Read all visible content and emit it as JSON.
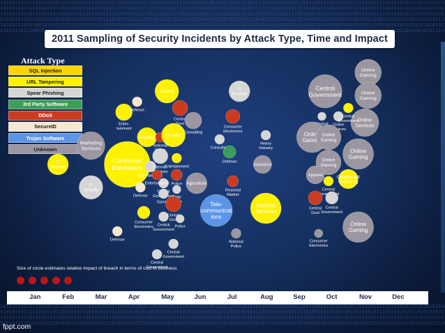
{
  "title": "2011 Sampling of Security Incidents by Attack Type, Time and Impact",
  "legend_title": "Attack Type",
  "note": "Size of circle estimates relative impact of breach in terms of cost to business",
  "brand": "fppt.com",
  "colors": {
    "sql_injection": "#ffd200",
    "url_tampering": "#fff200",
    "spear_phishing": "#d6d6d6",
    "third_party_software": "#3d9c5a",
    "ddos": "#cc3a1f",
    "secureid": "#f6e7d0",
    "trojan_software": "#5d95e6",
    "unknown": "#9b96a0"
  },
  "legend": [
    {
      "label": "SQL Injection",
      "color": "#ffd200",
      "text_color": "#1a1a1a"
    },
    {
      "label": "URL Tampering",
      "color": "#fff200",
      "text_color": "#1a1a1a"
    },
    {
      "label": "Spear Phishing",
      "color": "#d6d6d6",
      "text_color": "#1a1a1a"
    },
    {
      "label": "3rd Party Software",
      "color": "#3d9c5a",
      "text_color": "#ffffff"
    },
    {
      "label": "DDoS",
      "color": "#cc3a1f",
      "text_color": "#ffffff"
    },
    {
      "label": "SecureID",
      "color": "#f6e7d0",
      "text_color": "#1a1a1a"
    },
    {
      "label": "Trojan Software",
      "color": "#5d95e6",
      "text_color": "#ffffff"
    },
    {
      "label": "Unknown",
      "color": "#9b96a0",
      "text_color": "#1a1a1a"
    }
  ],
  "chart_data": {
    "type": "scatter",
    "title": "2011 Sampling of Security Incidents by Attack Type, Time and Impact",
    "x_categories": [
      "Jan",
      "Feb",
      "Mar",
      "Apr",
      "May",
      "Jun",
      "Jul",
      "Aug",
      "Sep",
      "Oct",
      "Nov",
      "Dec"
    ],
    "size_meaning": "Size of circle estimates relative impact of breach in terms of cost to business",
    "points": [
      {
        "label": "IT Security",
        "month": 1.7,
        "row": 0.47,
        "size": 15,
        "type": "url_tampering"
      },
      {
        "label": "Marketing Services",
        "month": 2.7,
        "row": 0.38,
        "size": 20,
        "type": "unknown"
      },
      {
        "label": "IT Security",
        "month": 2.7,
        "row": 0.58,
        "size": 17,
        "type": "spear_phishing"
      },
      {
        "label": "Consumer Electronics",
        "month": 3.8,
        "row": 0.47,
        "size": 33,
        "type": "url_tampering"
      },
      {
        "label": "Defense",
        "month": 3.5,
        "row": 0.79,
        "size": 7,
        "type": "secureid"
      },
      {
        "label": "Enter- tainment",
        "month": 3.7,
        "row": 0.22,
        "size": 12,
        "type": "url_tampering"
      },
      {
        "label": "Defense",
        "month": 4.1,
        "row": 0.17,
        "size": 7,
        "type": "secureid"
      },
      {
        "label": "Banking",
        "month": 4.4,
        "row": 0.34,
        "size": 14,
        "type": "url_tampering"
      },
      {
        "label": "Entertainment",
        "month": 4.5,
        "row": 0.48,
        "size": 8,
        "type": "spear_phishing"
      },
      {
        "label": "Defense",
        "month": 4.2,
        "row": 0.58,
        "size": 7,
        "type": "secureid"
      },
      {
        "label": "Consumer Electronics",
        "month": 4.3,
        "row": 0.7,
        "size": 9,
        "type": "url_tampering"
      },
      {
        "label": "Central Government",
        "month": 4.7,
        "row": 0.9,
        "size": 7,
        "type": "spear_phishing"
      },
      {
        "label": "National Police",
        "month": 4.8,
        "row": 0.34,
        "size": 7,
        "type": "ddos"
      },
      {
        "label": "Internet Services",
        "month": 4.8,
        "row": 0.43,
        "size": 11,
        "type": "spear_phishing"
      },
      {
        "label": "Central Government",
        "month": 4.9,
        "row": 0.56,
        "size": 7,
        "type": "spear_phishing"
      },
      {
        "label": "Gaming",
        "month": 4.9,
        "row": 0.61,
        "size": 7,
        "type": "spear_phishing"
      },
      {
        "label": "Central Government",
        "month": 4.9,
        "row": 0.72,
        "size": 7,
        "type": "spear_phishing"
      },
      {
        "label": "Entertainment",
        "month": 4.7,
        "row": 0.52,
        "size": 7,
        "type": "ddos"
      },
      {
        "label": "Gaming",
        "month": 5.0,
        "row": 0.12,
        "size": 17,
        "type": "url_tampering"
      },
      {
        "label": "Central Govt",
        "month": 5.4,
        "row": 0.2,
        "size": 11,
        "type": "ddos"
      },
      {
        "label": "Gaming",
        "month": 5.2,
        "row": 0.33,
        "size": 17,
        "type": "url_tampering"
      },
      {
        "label": "Entertainment",
        "month": 5.3,
        "row": 0.44,
        "size": 7,
        "type": "url_tampering"
      },
      {
        "label": "Police",
        "month": 5.3,
        "row": 0.52,
        "size": 8,
        "type": "ddos"
      },
      {
        "label": "State Police",
        "month": 5.3,
        "row": 0.59,
        "size": 6,
        "type": "spear_phishing"
      },
      {
        "label": "Central Govt",
        "month": 5.2,
        "row": 0.66,
        "size": 11,
        "type": "ddos"
      },
      {
        "label": "Police",
        "month": 5.4,
        "row": 0.73,
        "size": 6,
        "type": "spear_phishing"
      },
      {
        "label": "Central Government",
        "month": 5.2,
        "row": 0.85,
        "size": 7,
        "type": "spear_phishing"
      },
      {
        "label": "Consulting",
        "month": 5.8,
        "row": 0.26,
        "size": 12,
        "type": "unknown"
      },
      {
        "label": "Agriculture",
        "month": 5.9,
        "row": 0.56,
        "size": 15,
        "type": "unknown"
      },
      {
        "label": "Tele- communicat ions",
        "month": 6.5,
        "row": 0.69,
        "size": 23,
        "type": "trojan_software"
      },
      {
        "label": "IT Security",
        "month": 7.2,
        "row": 0.12,
        "size": 15,
        "type": "spear_phishing"
      },
      {
        "label": "Consumer Electronics",
        "month": 7.0,
        "row": 0.24,
        "size": 10,
        "type": "ddos"
      },
      {
        "label": "Consulting",
        "month": 6.6,
        "row": 0.35,
        "size": 7,
        "type": "spear_phishing"
      },
      {
        "label": "Defense",
        "month": 6.9,
        "row": 0.41,
        "size": 9,
        "type": "third_party_software"
      },
      {
        "label": "Financial Market",
        "month": 7.0,
        "row": 0.55,
        "size": 8,
        "type": "ddos"
      },
      {
        "label": "National Police",
        "month": 7.1,
        "row": 0.8,
        "size": 7,
        "type": "unknown"
      },
      {
        "label": "Heavy Industry",
        "month": 8.0,
        "row": 0.33,
        "size": 7,
        "type": "spear_phishing"
      },
      {
        "label": "Insurance",
        "month": 7.9,
        "row": 0.47,
        "size": 13,
        "type": "unknown"
      },
      {
        "label": "Internet Services",
        "month": 8.0,
        "row": 0.68,
        "size": 22,
        "type": "url_tampering"
      },
      {
        "label": "Central Government",
        "month": 9.8,
        "row": 0.12,
        "size": 24,
        "type": "unknown"
      },
      {
        "label": "Central Government",
        "month": 9.7,
        "row": 0.24,
        "size": 6,
        "type": "spear_phishing"
      },
      {
        "label": "Online Services",
        "month": 10.2,
        "row": 0.24,
        "size": 7,
        "type": "spear_phishing"
      },
      {
        "label": "Online Gaming",
        "month": 9.4,
        "row": 0.34,
        "size": 22,
        "type": "unknown"
      },
      {
        "label": "Online Gaming",
        "month": 9.9,
        "row": 0.34,
        "size": 18,
        "type": "unknown"
      },
      {
        "label": "Online Gaming",
        "month": 9.9,
        "row": 0.46,
        "size": 18,
        "type": "unknown"
      },
      {
        "label": "Apparel",
        "month": 9.5,
        "row": 0.52,
        "size": 13,
        "type": "unknown"
      },
      {
        "label": "Central Government",
        "month": 9.9,
        "row": 0.55,
        "size": 7,
        "type": "url_tampering"
      },
      {
        "label": "Central Govt",
        "month": 9.5,
        "row": 0.63,
        "size": 10,
        "type": "ddos"
      },
      {
        "label": "Central Government",
        "month": 10.0,
        "row": 0.63,
        "size": 9,
        "type": "spear_phishing"
      },
      {
        "label": "Consumer Electronics",
        "month": 9.6,
        "row": 0.8,
        "size": 6,
        "type": "unknown"
      },
      {
        "label": "Online Gaming",
        "month": 11.1,
        "row": 0.03,
        "size": 19,
        "type": "unknown"
      },
      {
        "label": "Online Gaming",
        "month": 11.1,
        "row": 0.14,
        "size": 19,
        "type": "unknown"
      },
      {
        "label": "Online Services",
        "month": 11.0,
        "row": 0.27,
        "size": 20,
        "type": "unknown"
      },
      {
        "label": "Online Gaming",
        "month": 10.8,
        "row": 0.42,
        "size": 22,
        "type": "unknown"
      },
      {
        "label": "Government Consulting",
        "month": 10.5,
        "row": 0.54,
        "size": 14,
        "type": "url_tampering"
      },
      {
        "label": "Online Gaming",
        "month": 10.8,
        "row": 0.77,
        "size": 22,
        "type": "unknown"
      },
      {
        "label": "Central Government",
        "month": 10.5,
        "row": 0.2,
        "size": 7,
        "type": "url_tampering"
      }
    ]
  }
}
